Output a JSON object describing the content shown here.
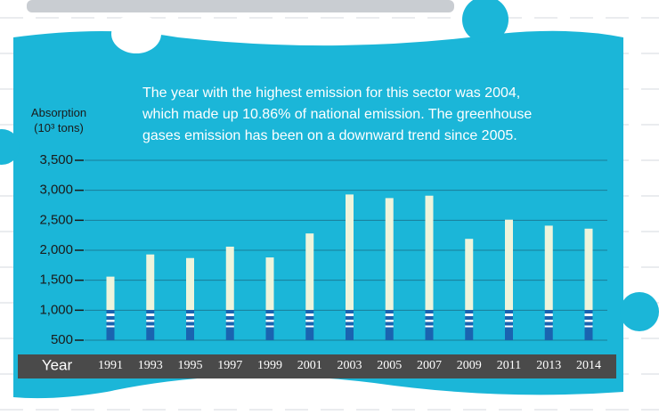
{
  "chart_data": {
    "type": "bar",
    "annotation": [
      "The year with the highest emission for this sector was 2004,",
      "which made up 10.86% of national emission. The greenhouse",
      "gases emission has been on a downward trend since 2005."
    ],
    "y_label": [
      "Absorption",
      "(10³ tons)"
    ],
    "x_label": "Year",
    "categories": [
      "1991",
      "1993",
      "1995",
      "1997",
      "1999",
      "2001",
      "2003",
      "2005",
      "2007",
      "2009",
      "2011",
      "2013",
      "2014"
    ],
    "values": [
      1560,
      1930,
      1870,
      2060,
      1880,
      2280,
      2930,
      2870,
      2910,
      2190,
      2510,
      2410,
      2360
    ],
    "color": "#eef4dc",
    "base_color": "#1a63b0",
    "ylim": [
      500,
      3500
    ],
    "yticks": [
      {
        "value": 500,
        "label": "500"
      },
      {
        "value": 1000,
        "label": "1,000"
      },
      {
        "value": 1500,
        "label": "1,500"
      },
      {
        "value": 2000,
        "label": "2,000"
      },
      {
        "value": 2500,
        "label": "2,500"
      },
      {
        "value": 3000,
        "label": "3,000"
      },
      {
        "value": 3500,
        "label": "3,500"
      }
    ],
    "grid": true
  }
}
